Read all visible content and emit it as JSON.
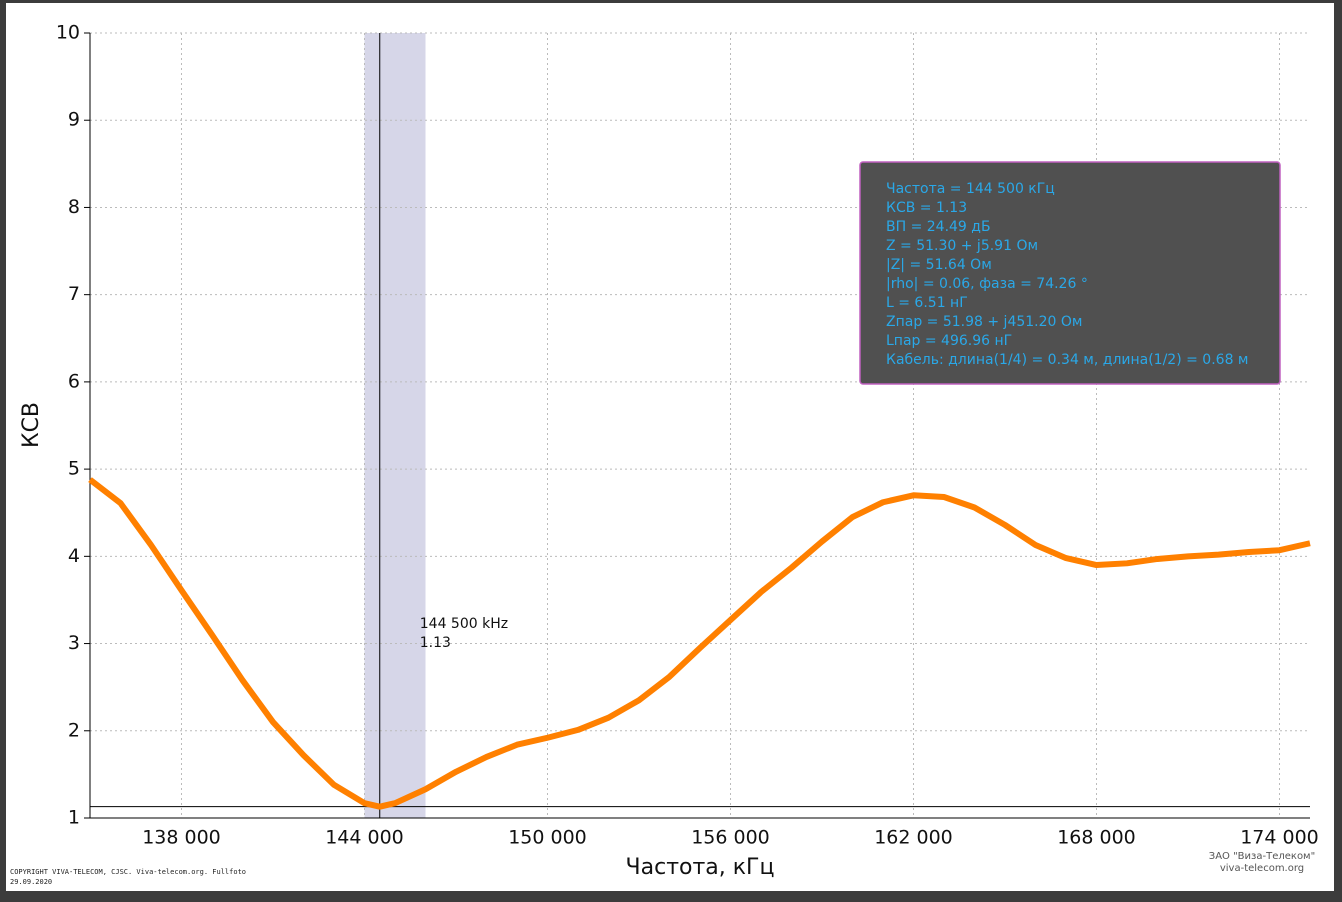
{
  "chart_data": {
    "type": "line",
    "x_label": "Частота, кГц",
    "y_label": "КСВ",
    "x": [
      135000,
      136000,
      137000,
      138000,
      139000,
      140000,
      141000,
      142000,
      143000,
      144000,
      144500,
      145000,
      146000,
      147000,
      148000,
      149000,
      150000,
      151000,
      152000,
      153000,
      154000,
      155000,
      156000,
      157000,
      158000,
      159000,
      160000,
      161000,
      162000,
      163000,
      164000,
      165000,
      166000,
      167000,
      168000,
      169000,
      170000,
      171000,
      172000,
      173000,
      174000,
      175000
    ],
    "series": [
      {
        "color": "#ff8000",
        "values": [
          4.88,
          4.61,
          4.13,
          3.61,
          3.1,
          2.58,
          2.1,
          1.72,
          1.38,
          1.17,
          1.13,
          1.17,
          1.33,
          1.53,
          1.7,
          1.84,
          1.92,
          2.01,
          2.15,
          2.35,
          2.62,
          2.95,
          3.27,
          3.59,
          3.87,
          4.17,
          4.45,
          4.62,
          4.7,
          4.68,
          4.56,
          4.36,
          4.13,
          3.98,
          3.9,
          3.92,
          3.97,
          4.0,
          4.02,
          4.05,
          4.07,
          4.15
        ]
      }
    ],
    "xlim": [
      135000,
      175000
    ],
    "ylim": [
      1,
      10
    ],
    "xticks": [
      {
        "value": 138000,
        "label": "138 000"
      },
      {
        "value": 144000,
        "label": "144 000"
      },
      {
        "value": 150000,
        "label": "150 000"
      },
      {
        "value": 156000,
        "label": "156 000"
      },
      {
        "value": 162000,
        "label": "162 000"
      },
      {
        "value": 168000,
        "label": "168 000"
      },
      {
        "value": 174000,
        "label": "174 000"
      }
    ],
    "yticks": [
      1,
      2,
      3,
      4,
      5,
      6,
      7,
      8,
      9,
      10
    ],
    "grid": true,
    "marker_band": [
      144000,
      146000
    ],
    "marker": {
      "x": {
        "value": 144500,
        "label": "144 500 kHz"
      },
      "y": 1.13
    },
    "info_box": [
      "Частота = 144 500 кГц",
      "КСВ = 1.13",
      "ВП = 24.49 дБ",
      "Z = 51.30 + j5.91 Ом",
      "|Z| = 51.64 Ом",
      "|rho| = 0.06, фаза = 74.26 °",
      "L = 6.51 нГ",
      "Zпар = 51.98 + j451.20 Ом",
      "Lпар = 496.96 нГ",
      "Кабель: длина(1/4) = 0.34 м, длина(1/2) = 0.68 м"
    ]
  },
  "footer": {
    "copyright": "COPYRIGHT VIVA-TELECOM, CJSC. Viva-telecom.org. Fullfoto",
    "date": "29.09.2020",
    "company": "ЗАО \"Виза-Телеком\"",
    "site": "viva-telecom.org"
  }
}
